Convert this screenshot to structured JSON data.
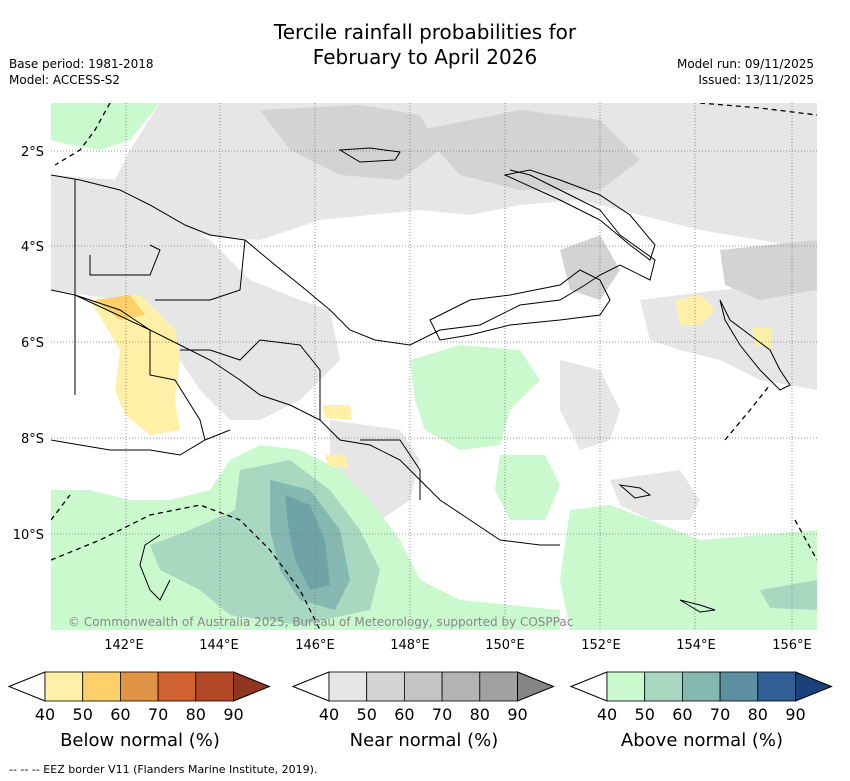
{
  "title": {
    "line1": "Tercile rainfall probabilities for",
    "line2": "February to April 2026"
  },
  "meta": {
    "base_period": "Base period: 1981-2018",
    "model": "Model: ACCESS-S2",
    "model_run": "Model run: 09/11/2025",
    "issued": "Issued: 13/11/2025"
  },
  "map": {
    "lat_ticks": [
      "2°S",
      "4°S",
      "6°S",
      "8°S",
      "10°S"
    ],
    "lon_ticks": [
      "142°E",
      "144°E",
      "146°E",
      "148°E",
      "150°E",
      "152°E",
      "154°E",
      "156°E"
    ],
    "attribution": "© Commonwealth of Australia 2025, Bureau of Meteorology, supported by COSPPac"
  },
  "colorbars": [
    {
      "label": "Below normal (%)",
      "ticks": [
        "40",
        "50",
        "60",
        "70",
        "80",
        "90"
      ],
      "colors": [
        "#fff0a8",
        "#fdd06a",
        "#e09546",
        "#cf6230",
        "#b34827",
        "#8f3520"
      ]
    },
    {
      "label": "Near normal (%)",
      "ticks": [
        "40",
        "50",
        "60",
        "70",
        "80",
        "90"
      ],
      "colors": [
        "#e6e6e6",
        "#d3d3d3",
        "#c4c4c4",
        "#b3b3b3",
        "#a1a1a1",
        "#858585"
      ]
    },
    {
      "label": "Above normal (%)",
      "ticks": [
        "40",
        "50",
        "60",
        "70",
        "80",
        "90"
      ],
      "colors": [
        "#c9f9cd",
        "#a9d8c0",
        "#84b8b0",
        "#5d8fa0",
        "#305f93",
        "#1a427a"
      ]
    }
  ],
  "footer": "--  --  -- EEZ border V11 (Flanders Marine Institute, 2019)."
}
